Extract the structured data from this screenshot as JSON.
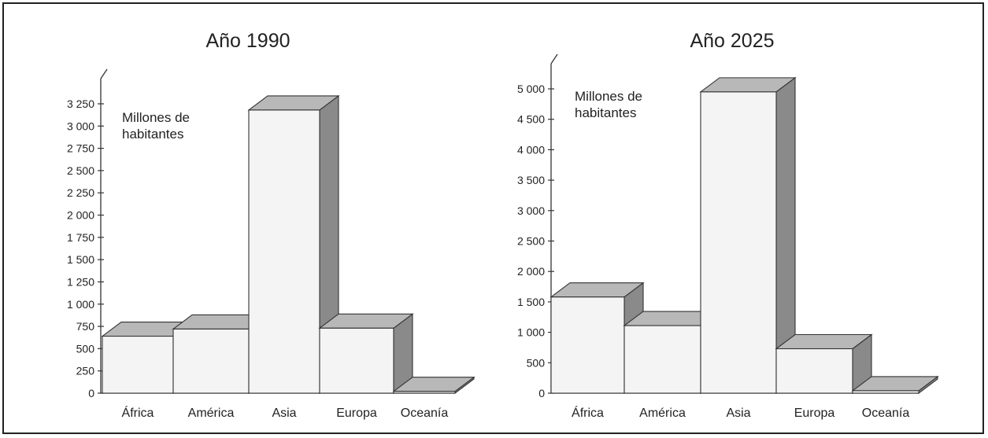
{
  "chart_data": [
    {
      "type": "bar",
      "title": "Año 1990",
      "ylabel": "Millones de habitantes",
      "ylabel_lines": [
        "Millones de",
        "habitantes"
      ],
      "categories": [
        "África",
        "América",
        "Asia",
        "Europa",
        "Oceanía"
      ],
      "values": [
        640,
        720,
        3180,
        730,
        20
      ],
      "ylim": [
        0,
        3250
      ],
      "yticks": [
        0,
        250,
        500,
        750,
        1000,
        1250,
        1500,
        1750,
        2000,
        2250,
        2500,
        2750,
        3000,
        3250
      ],
      "ytick_labels": [
        "0",
        "250",
        "500",
        "750",
        "1 000",
        "1 250",
        "1 500",
        "1 750",
        "2 000",
        "2 250",
        "2 500",
        "2 750",
        "3 000",
        "3 250"
      ],
      "grid": false,
      "style": "3d-columns",
      "colors": {
        "front": "#f4f4f4",
        "top": "#b8b8b8",
        "side": "#8a8a8a"
      }
    },
    {
      "type": "bar",
      "title": "Año 2025",
      "ylabel": "Millones de habitantes",
      "ylabel_lines": [
        "Millones de",
        "habitantes"
      ],
      "categories": [
        "África",
        "América",
        "Asia",
        "Europa",
        "Oceanía"
      ],
      "values": [
        1580,
        1110,
        4950,
        730,
        40
      ],
      "ylim": [
        0,
        5000
      ],
      "yticks": [
        0,
        500,
        1000,
        1500,
        2000,
        2500,
        3000,
        3500,
        4000,
        4500,
        5000
      ],
      "ytick_labels": [
        "0",
        "500",
        "1 000",
        "1 500",
        "2 000",
        "2 500",
        "3 000",
        "3 500",
        "4 000",
        "4 500",
        "5 000"
      ],
      "grid": false,
      "style": "3d-columns",
      "colors": {
        "front": "#f4f4f4",
        "top": "#b8b8b8",
        "side": "#8a8a8a"
      }
    }
  ]
}
